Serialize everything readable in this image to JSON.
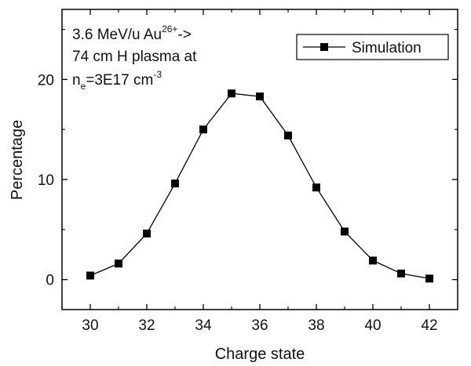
{
  "chart_data": {
    "type": "line",
    "xlabel": "Charge state",
    "ylabel": "Percentage",
    "xlim": [
      29,
      43
    ],
    "ylim": [
      -3,
      27
    ],
    "xticks": [
      30,
      32,
      34,
      36,
      38,
      40,
      42
    ],
    "yticks": [
      0,
      10,
      20
    ],
    "grid": false,
    "legend_position": "top-right",
    "series": [
      {
        "name": "Simulation",
        "marker": "square",
        "color": "#000000",
        "x": [
          30,
          31,
          32,
          33,
          34,
          35,
          36,
          37,
          38,
          39,
          40,
          41,
          42
        ],
        "y": [
          0.4,
          1.6,
          4.6,
          9.6,
          15.0,
          18.6,
          18.3,
          14.4,
          9.2,
          4.8,
          1.9,
          0.6,
          0.1
        ]
      }
    ],
    "annotation": {
      "line1_text": "3.6 MeV/u Au",
      "line1_sup": "26+",
      "line1_tail": "->",
      "line2": "74 cm H plasma at",
      "line3_n": "n",
      "line3_sub": "e",
      "line3_eq": "=3E17 cm",
      "line3_sup": "-3"
    }
  }
}
